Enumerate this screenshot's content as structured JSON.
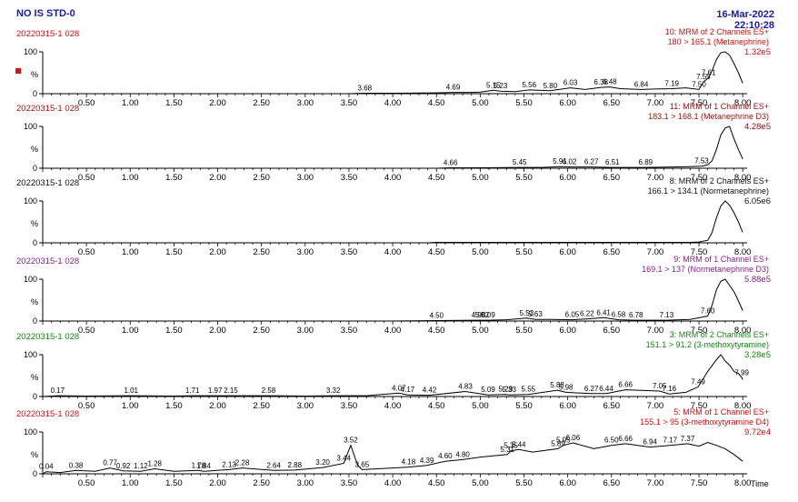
{
  "header": {
    "sample": "NO IS STD-0",
    "date": "16-Mar-2022",
    "time": "22:10:28"
  },
  "x_axis": {
    "ticks": [
      "0.50",
      "1.00",
      "1.50",
      "2.00",
      "2.50",
      "3.00",
      "3.50",
      "4.00",
      "4.50",
      "5.00",
      "5.50",
      "6.00",
      "6.50",
      "7.00",
      "7.50",
      "8.00"
    ],
    "label": "Time",
    "xlim": [
      0.0,
      8.05
    ]
  },
  "y_axis": {
    "ticks": [
      "100",
      "0"
    ],
    "label": "%",
    "ylim": [
      0,
      100
    ]
  },
  "chart_data": [
    {
      "type": "line",
      "file": "20220315-1 028",
      "title": "10: MRM of 2 Channels ES+",
      "transition": "180 > 165.1 (Metanephrine)",
      "intensity": "1.32e5",
      "color": "#cc1111",
      "marker": true,
      "x": [
        0.0,
        0.5,
        1.0,
        1.5,
        2.0,
        2.5,
        3.0,
        3.5,
        3.68,
        4.0,
        4.5,
        4.69,
        4.9,
        5.0,
        5.15,
        5.23,
        5.4,
        5.56,
        5.8,
        6.03,
        6.2,
        6.38,
        6.48,
        6.6,
        6.84,
        7.0,
        7.19,
        7.35,
        7.5,
        7.55,
        7.61,
        7.65,
        7.7,
        7.75,
        7.8,
        7.85,
        7.9,
        7.95,
        8.0
      ],
      "y": [
        0,
        0,
        0,
        0,
        0,
        0,
        0,
        0,
        1,
        1,
        2,
        3,
        3,
        4,
        8,
        6,
        5,
        9,
        7,
        14,
        10,
        15,
        16,
        12,
        10,
        11,
        12,
        14,
        10,
        28,
        38,
        55,
        82,
        98,
        100,
        92,
        72,
        50,
        25
      ],
      "peak_labels": [
        {
          "t": 3.68,
          "label": "3.68"
        },
        {
          "t": 4.69,
          "label": "4.69"
        },
        {
          "t": 5.15,
          "label": "5.15"
        },
        {
          "t": 5.23,
          "label": "5.23"
        },
        {
          "t": 5.56,
          "label": "5.56"
        },
        {
          "t": 5.8,
          "label": "5.80"
        },
        {
          "t": 6.03,
          "label": "6.03"
        },
        {
          "t": 6.38,
          "label": "6.38"
        },
        {
          "t": 6.48,
          "label": "6.48"
        },
        {
          "t": 6.84,
          "label": "6.84"
        },
        {
          "t": 7.19,
          "label": "7.19"
        },
        {
          "t": 7.5,
          "label": "7.50"
        },
        {
          "t": 7.55,
          "label": "7.55"
        },
        {
          "t": 7.61,
          "label": "7.61"
        }
      ]
    },
    {
      "type": "line",
      "file": "20220315-1 028",
      "title": "11: MRM of 1 Channel ES+",
      "transition": "183.1 > 168.1 (Metanephrine D3)",
      "intensity": "4.28e5",
      "color": "#991111",
      "marker": false,
      "x": [
        0.0,
        0.5,
        1.0,
        1.5,
        2.0,
        2.5,
        3.0,
        3.5,
        4.0,
        4.5,
        4.66,
        5.0,
        5.45,
        5.7,
        5.91,
        6.02,
        6.27,
        6.51,
        6.7,
        6.89,
        7.2,
        7.4,
        7.53,
        7.6,
        7.65,
        7.7,
        7.75,
        7.8,
        7.85,
        7.9,
        7.95,
        8.0
      ],
      "y": [
        0,
        0,
        0,
        0,
        0,
        0,
        0,
        0,
        0,
        0,
        1,
        1,
        2,
        2,
        4,
        3,
        3,
        2,
        2,
        2,
        3,
        4,
        5,
        8,
        18,
        45,
        80,
        96,
        100,
        70,
        45,
        22
      ],
      "peak_labels": [
        {
          "t": 4.66,
          "label": "4.66"
        },
        {
          "t": 5.45,
          "label": "5.45"
        },
        {
          "t": 5.91,
          "label": "5.91"
        },
        {
          "t": 6.02,
          "label": "6.02"
        },
        {
          "t": 6.27,
          "label": "6.27"
        },
        {
          "t": 6.51,
          "label": "6.51"
        },
        {
          "t": 6.89,
          "label": "6.89"
        },
        {
          "t": 7.53,
          "label": "7.53"
        }
      ]
    },
    {
      "type": "line",
      "file": "20220315-1 028",
      "title": "8: MRM of 2 Channels ES+",
      "transition": "166.1 > 134.1 (Normetanephrine)",
      "intensity": "6.05e6",
      "color": "#111111",
      "marker": false,
      "x": [
        0.0,
        0.5,
        1.0,
        1.5,
        2.0,
        2.5,
        3.0,
        3.5,
        4.0,
        4.4,
        4.5,
        5.0,
        5.5,
        6.0,
        6.5,
        7.0,
        7.4,
        7.5,
        7.6,
        7.65,
        7.7,
        7.75,
        7.8,
        7.85,
        7.9,
        7.95,
        8.0
      ],
      "y": [
        0,
        0,
        0,
        0,
        0,
        0,
        0,
        0,
        0,
        0,
        1,
        1,
        1,
        1,
        1,
        1,
        1,
        2,
        6,
        25,
        60,
        88,
        100,
        90,
        72,
        50,
        25
      ],
      "peak_labels": []
    },
    {
      "type": "line",
      "file": "20220315-1 028",
      "title": "9: MRM of 1 Channel ES+",
      "transition": "169.1 > 137 (Normetanephrine D3)",
      "intensity": "5.88e5",
      "color": "#882288",
      "marker": false,
      "x": [
        0.0,
        0.5,
        1.0,
        1.5,
        2.0,
        2.5,
        3.0,
        3.5,
        4.0,
        4.5,
        4.98,
        5.02,
        5.09,
        5.3,
        5.53,
        5.63,
        5.8,
        6.05,
        6.22,
        6.41,
        6.58,
        6.78,
        7.0,
        7.13,
        7.4,
        7.6,
        7.65,
        7.7,
        7.75,
        7.8,
        7.85,
        7.9,
        7.95,
        8.0
      ],
      "y": [
        0,
        0,
        0,
        0,
        0,
        0,
        0,
        0,
        0,
        1,
        2,
        2,
        2,
        3,
        7,
        4,
        4,
        3,
        5,
        8,
        3,
        2,
        2,
        2,
        4,
        12,
        38,
        75,
        95,
        100,
        85,
        70,
        48,
        25
      ],
      "peak_labels": [
        {
          "t": 4.5,
          "label": "4.50"
        },
        {
          "t": 4.98,
          "label": "4.98"
        },
        {
          "t": 5.02,
          "label": "5.02"
        },
        {
          "t": 5.09,
          "label": "5.09"
        },
        {
          "t": 5.53,
          "label": "5.53"
        },
        {
          "t": 5.63,
          "label": "5.63"
        },
        {
          "t": 6.05,
          "label": "6.05"
        },
        {
          "t": 6.22,
          "label": "6.22"
        },
        {
          "t": 6.41,
          "label": "6.41"
        },
        {
          "t": 6.58,
          "label": "6.58"
        },
        {
          "t": 6.78,
          "label": "6.78"
        },
        {
          "t": 7.13,
          "label": "7.13"
        },
        {
          "t": 7.6,
          "label": "7.60"
        }
      ]
    },
    {
      "type": "line",
      "file": "20220315-1 028",
      "title": "3: MRM of 2 Channels ES+",
      "transition": "151.1 > 91.2 (3-methoxytyramine)",
      "intensity": "3.28e5",
      "color": "#118811",
      "marker": false,
      "x": [
        0.0,
        0.17,
        0.5,
        1.01,
        1.5,
        1.71,
        1.97,
        2.15,
        2.58,
        3.0,
        3.32,
        3.7,
        4.07,
        4.17,
        4.42,
        4.83,
        5.09,
        5.29,
        5.33,
        5.55,
        5.88,
        5.98,
        6.27,
        6.44,
        6.66,
        7.05,
        7.16,
        7.35,
        7.49,
        7.6,
        7.7,
        7.75,
        7.8,
        7.85,
        7.9,
        7.95,
        7.99,
        8.0
      ],
      "y": [
        0,
        2,
        1,
        2,
        1,
        2,
        2,
        2,
        2,
        1,
        2,
        2,
        8,
        4,
        3,
        12,
        4,
        5,
        4,
        5,
        15,
        10,
        7,
        7,
        16,
        13,
        6,
        10,
        23,
        60,
        88,
        100,
        85,
        75,
        60,
        55,
        45,
        40
      ],
      "peak_labels": [
        {
          "t": 0.17,
          "label": "0.17"
        },
        {
          "t": 1.01,
          "label": "1.01"
        },
        {
          "t": 1.71,
          "label": "1.71"
        },
        {
          "t": 1.97,
          "label": "1.97"
        },
        {
          "t": 2.15,
          "label": "2.15"
        },
        {
          "t": 2.58,
          "label": "2.58"
        },
        {
          "t": 3.32,
          "label": "3.32"
        },
        {
          "t": 4.07,
          "label": "4.07"
        },
        {
          "t": 4.17,
          "label": "4.17"
        },
        {
          "t": 4.42,
          "label": "4.42"
        },
        {
          "t": 4.83,
          "label": "4.83"
        },
        {
          "t": 5.09,
          "label": "5.09"
        },
        {
          "t": 5.29,
          "label": "5.29"
        },
        {
          "t": 5.33,
          "label": "5.33"
        },
        {
          "t": 5.55,
          "label": "5.55"
        },
        {
          "t": 5.88,
          "label": "5.88"
        },
        {
          "t": 5.98,
          "label": "5.98"
        },
        {
          "t": 6.27,
          "label": "6.27"
        },
        {
          "t": 6.44,
          "label": "6.44"
        },
        {
          "t": 6.66,
          "label": "6.66"
        },
        {
          "t": 7.05,
          "label": "7.05"
        },
        {
          "t": 7.16,
          "label": "7.16"
        },
        {
          "t": 7.49,
          "label": "7.49"
        },
        {
          "t": 7.99,
          "label": "7.99"
        }
      ]
    },
    {
      "type": "line",
      "file": "20220315-1 028",
      "title": "5: MRM of 1 Channel ES+",
      "transition": "155.1 > 95 (3-methoxytyramine D4)",
      "intensity": "9.72e4",
      "color": "#cc1111",
      "marker": false,
      "x": [
        0.0,
        0.04,
        0.2,
        0.38,
        0.6,
        0.77,
        0.92,
        1.12,
        1.28,
        1.5,
        1.78,
        1.84,
        2.13,
        2.28,
        2.64,
        2.88,
        3.2,
        3.44,
        3.52,
        3.6,
        3.65,
        4.0,
        4.18,
        4.39,
        4.6,
        4.8,
        5.0,
        5.31,
        5.35,
        5.44,
        5.6,
        5.89,
        5.95,
        6.06,
        6.3,
        6.5,
        6.66,
        6.94,
        7.17,
        7.37,
        7.5,
        7.6,
        7.7,
        7.8,
        7.9,
        8.0
      ],
      "y": [
        0,
        5,
        3,
        8,
        6,
        14,
        7,
        6,
        12,
        6,
        8,
        6,
        10,
        14,
        8,
        9,
        15,
        25,
        68,
        20,
        10,
        14,
        16,
        20,
        30,
        34,
        40,
        46,
        55,
        58,
        52,
        60,
        68,
        74,
        60,
        68,
        72,
        64,
        68,
        72,
        66,
        75,
        68,
        60,
        46,
        30
      ],
      "peak_labels": [
        {
          "t": 0.04,
          "label": "0.04"
        },
        {
          "t": 0.38,
          "label": "0.38"
        },
        {
          "t": 0.77,
          "label": "0.77"
        },
        {
          "t": 0.92,
          "label": "0.92"
        },
        {
          "t": 1.12,
          "label": "1.12"
        },
        {
          "t": 1.28,
          "label": "1.28"
        },
        {
          "t": 1.78,
          "label": "1.78"
        },
        {
          "t": 1.84,
          "label": "1.84"
        },
        {
          "t": 2.13,
          "label": "2.13"
        },
        {
          "t": 2.28,
          "label": "2.28"
        },
        {
          "t": 2.64,
          "label": "2.64"
        },
        {
          "t": 2.88,
          "label": "2.88"
        },
        {
          "t": 3.2,
          "label": "3.20"
        },
        {
          "t": 3.44,
          "label": "3.44"
        },
        {
          "t": 3.52,
          "label": "3.52"
        },
        {
          "t": 3.65,
          "label": "3.65"
        },
        {
          "t": 4.18,
          "label": "4.18"
        },
        {
          "t": 4.39,
          "label": "4.39"
        },
        {
          "t": 4.6,
          "label": "4.60"
        },
        {
          "t": 4.8,
          "label": "4.80"
        },
        {
          "t": 5.31,
          "label": "5.31"
        },
        {
          "t": 5.35,
          "label": "5.35"
        },
        {
          "t": 5.44,
          "label": "5.44"
        },
        {
          "t": 5.89,
          "label": "5.89"
        },
        {
          "t": 5.95,
          "label": "5.95"
        },
        {
          "t": 6.06,
          "label": "6.06"
        },
        {
          "t": 6.5,
          "label": "6.50"
        },
        {
          "t": 6.66,
          "label": "6.66"
        },
        {
          "t": 6.94,
          "label": "6.94"
        },
        {
          "t": 7.17,
          "label": "7.17"
        },
        {
          "t": 7.37,
          "label": "7.37"
        }
      ]
    }
  ]
}
